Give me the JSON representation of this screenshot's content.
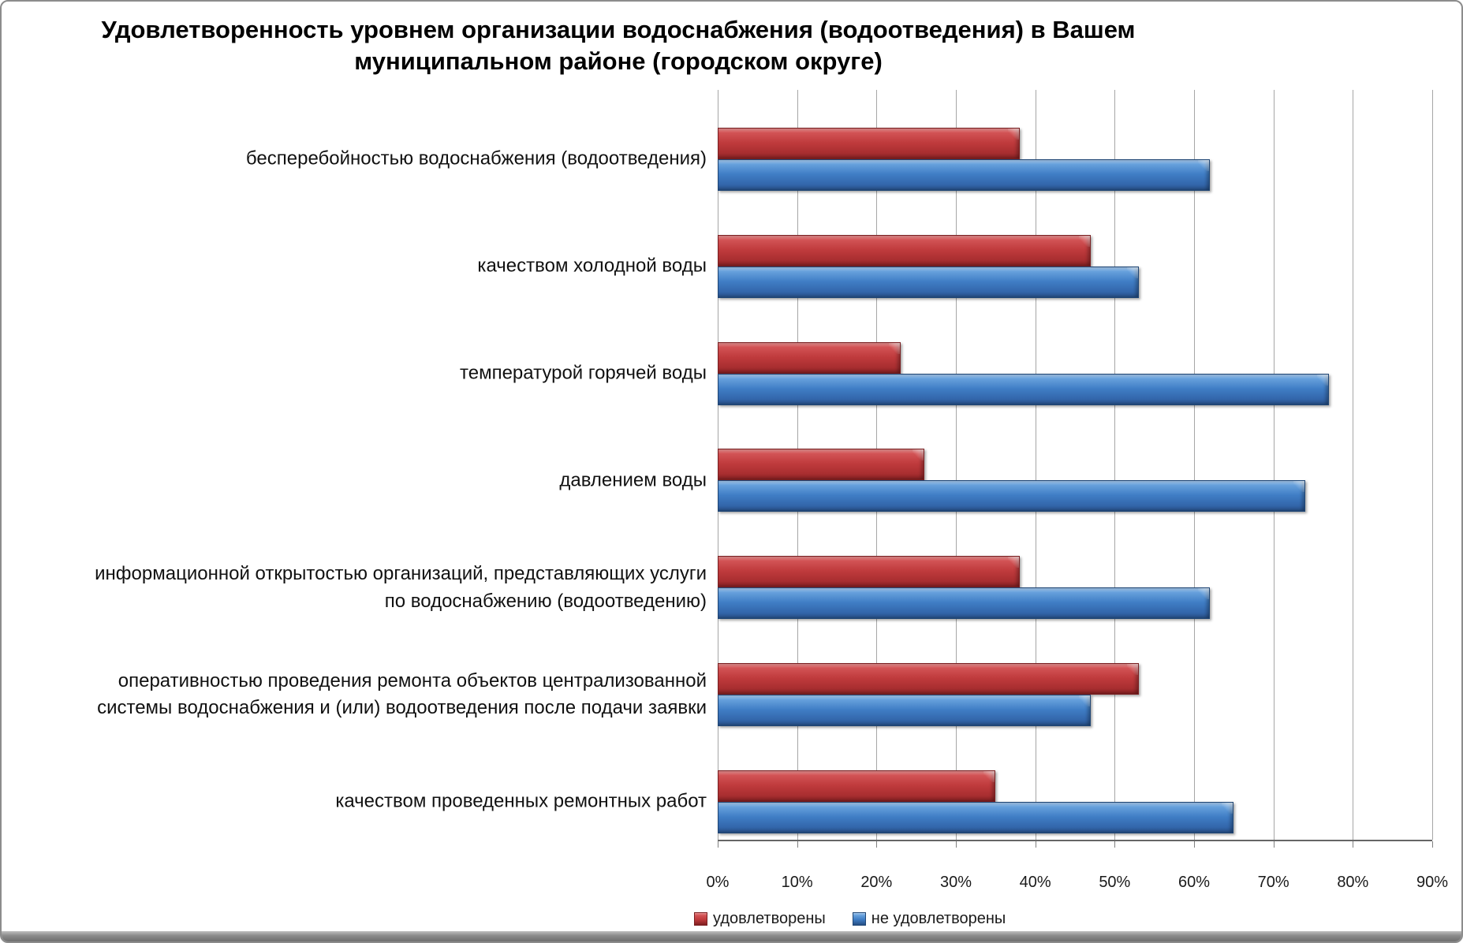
{
  "title": {
    "lines": [
      "Удовлетворенность уровнем организации водоснабжения (водоотведения) в Вашем",
      "муниципальном районе (городском округе)"
    ]
  },
  "chart_data": {
    "type": "bar",
    "orientation": "horizontal",
    "categories": [
      [
        "бесперебойностью  водоснабжения (водоотведения)"
      ],
      [
        "качеством холодной воды"
      ],
      [
        "температурой горячей воды"
      ],
      [
        "давлением воды"
      ],
      [
        "информационной открытостью организаций, представляющих услуги",
        "по водоснабжению (водоотведению)"
      ],
      [
        "оперативностью проведения ремонта объектов централизованной",
        "системы водоснабжения и (или) водоотведения после подачи заявки"
      ],
      [
        "качеством проведенных ремонтных работ"
      ]
    ],
    "series": [
      {
        "name": "удовлетворены",
        "color": "#BE393B",
        "values": [
          38,
          47,
          23,
          26,
          38,
          53,
          35
        ]
      },
      {
        "name": "не удовлетворены",
        "color": "#3E7AC2",
        "values": [
          62,
          53,
          77,
          74,
          62,
          47,
          65
        ]
      }
    ],
    "xlim": [
      0,
      90
    ],
    "x_tick_labels": [
      "0%",
      "10%",
      "20%",
      "30%",
      "40%",
      "50%",
      "60%",
      "70%",
      "80%",
      "90%"
    ],
    "grid": true,
    "legend_position": "bottom"
  }
}
